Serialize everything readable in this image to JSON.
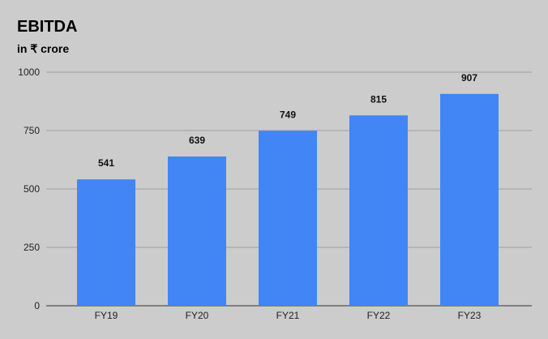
{
  "chart_data": {
    "type": "bar",
    "title": "EBITDA",
    "subtitle": "in ₹ crore",
    "categories": [
      "FY19",
      "FY20",
      "FY21",
      "FY22",
      "FY23"
    ],
    "values": [
      541,
      639,
      749,
      815,
      907
    ],
    "xlabel": "",
    "ylabel": "",
    "ylim": [
      0,
      1000
    ],
    "yticks": [
      0,
      250,
      500,
      750,
      1000
    ],
    "grid": true,
    "legend": "none",
    "data_labels": true,
    "colors": {
      "bar": "#4285f4",
      "background": "#cccccc",
      "grid": "#9e9e9e"
    }
  }
}
